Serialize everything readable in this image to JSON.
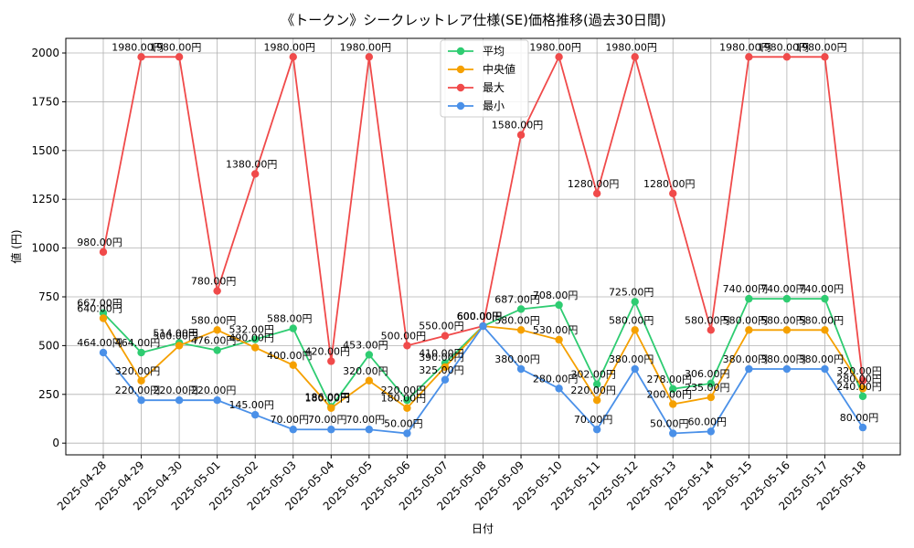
{
  "chart_data": {
    "type": "line",
    "title": "《トークン》シークレットレア仕様(SE)価格推移(過去30日間)",
    "xlabel": "日付",
    "ylabel": "値 (円)",
    "ylim": [
      -60,
      2075
    ],
    "yticks": [
      0,
      250,
      500,
      750,
      1000,
      1250,
      1500,
      1750,
      2000
    ],
    "grid": true,
    "legend_position": "top-center",
    "label_suffix": "円",
    "categories": [
      "2025-04-28",
      "2025-04-29",
      "2025-04-30",
      "2025-05-01",
      "2025-05-02",
      "2025-05-03",
      "2025-05-04",
      "2025-05-05",
      "2025-05-06",
      "2025-05-07",
      "2025-05-08",
      "2025-05-09",
      "2025-05-10",
      "2025-05-11",
      "2025-05-12",
      "2025-05-13",
      "2025-05-14",
      "2025-05-15",
      "2025-05-16",
      "2025-05-17",
      "2025-05-18"
    ],
    "series": [
      {
        "name": "平均",
        "color": "#2ecc71",
        "values": [
          667,
          464,
          514,
          476,
          532,
          588,
          186,
          453,
          220,
          410,
          600,
          687,
          708,
          302,
          725,
          278,
          306,
          740,
          740,
          740,
          240
        ]
      },
      {
        "name": "中央値",
        "color": "#f5a000",
        "values": [
          640,
          320,
          500,
          580,
          490,
          400,
          180,
          320,
          180,
          390,
          600,
          580,
          530,
          220,
          580,
          200,
          235,
          580,
          580,
          580,
          280
        ]
      },
      {
        "name": "最大",
        "color": "#f04a4a",
        "values": [
          980,
          1980,
          1980,
          780,
          1380,
          1980,
          420,
          1980,
          500,
          550,
          600,
          1580,
          1980,
          1280,
          1980,
          1280,
          580,
          1980,
          1980,
          1980,
          320
        ]
      },
      {
        "name": "最小",
        "color": "#4a90e8",
        "values": [
          464,
          220,
          220,
          220,
          145,
          70,
          70,
          70,
          50,
          325,
          600,
          380,
          280,
          70,
          380,
          50,
          60,
          380,
          380,
          380,
          80
        ]
      }
    ]
  }
}
